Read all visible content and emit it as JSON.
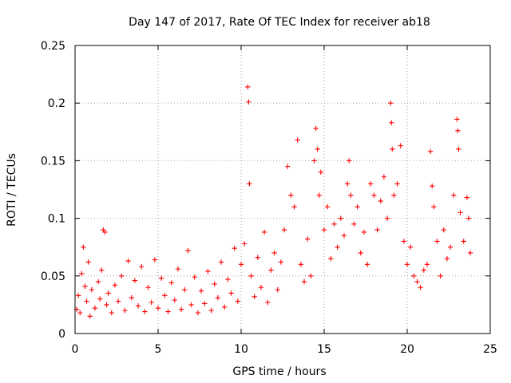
{
  "chart_data": {
    "type": "scatter",
    "title": "Day 147 of 2017, Rate Of TEC Index for receiver ab18",
    "xlabel": "GPS time / hours",
    "ylabel": "ROTI / TECUs",
    "xlim": [
      0,
      25
    ],
    "ylim": [
      0,
      0.25
    ],
    "grid": true,
    "marker": "plus",
    "x_ticks": [
      {
        "value": 0,
        "label": "0"
      },
      {
        "value": 5,
        "label": "5"
      },
      {
        "value": 10,
        "label": "10"
      },
      {
        "value": 15,
        "label": "15"
      },
      {
        "value": 20,
        "label": "20"
      },
      {
        "value": 25,
        "label": "25"
      }
    ],
    "y_ticks": [
      {
        "value": 0,
        "label": "0"
      },
      {
        "value": 0.05,
        "label": "0.05"
      },
      {
        "value": 0.1,
        "label": "0.1"
      },
      {
        "value": 0.15,
        "label": "0.15"
      },
      {
        "value": 0.2,
        "label": "0.2"
      },
      {
        "value": 0.25,
        "label": "0.25"
      }
    ],
    "series": [
      {
        "name": "ab18",
        "color": "#ff0000",
        "points": [
          [
            0.1,
            0.021
          ],
          [
            0.2,
            0.033
          ],
          [
            0.3,
            0.018
          ],
          [
            0.4,
            0.052
          ],
          [
            0.5,
            0.075
          ],
          [
            0.6,
            0.041
          ],
          [
            0.7,
            0.028
          ],
          [
            0.8,
            0.062
          ],
          [
            0.9,
            0.015
          ],
          [
            1.0,
            0.038
          ],
          [
            1.2,
            0.022
          ],
          [
            1.4,
            0.045
          ],
          [
            1.5,
            0.03
          ],
          [
            1.6,
            0.055
          ],
          [
            1.7,
            0.09
          ],
          [
            1.8,
            0.088
          ],
          [
            1.9,
            0.025
          ],
          [
            2.0,
            0.035
          ],
          [
            2.2,
            0.018
          ],
          [
            2.4,
            0.042
          ],
          [
            2.6,
            0.028
          ],
          [
            2.8,
            0.05
          ],
          [
            3.0,
            0.02
          ],
          [
            3.2,
            0.063
          ],
          [
            3.4,
            0.031
          ],
          [
            3.6,
            0.046
          ],
          [
            3.8,
            0.024
          ],
          [
            4.0,
            0.058
          ],
          [
            4.2,
            0.019
          ],
          [
            4.4,
            0.04
          ],
          [
            4.6,
            0.027
          ],
          [
            4.8,
            0.064
          ],
          [
            5.0,
            0.022
          ],
          [
            5.2,
            0.048
          ],
          [
            5.4,
            0.033
          ],
          [
            5.6,
            0.019
          ],
          [
            5.8,
            0.044
          ],
          [
            6.0,
            0.029
          ],
          [
            6.2,
            0.056
          ],
          [
            6.4,
            0.021
          ],
          [
            6.6,
            0.038
          ],
          [
            6.8,
            0.072
          ],
          [
            7.0,
            0.025
          ],
          [
            7.2,
            0.049
          ],
          [
            7.4,
            0.018
          ],
          [
            7.6,
            0.037
          ],
          [
            7.8,
            0.026
          ],
          [
            8.0,
            0.054
          ],
          [
            8.2,
            0.02
          ],
          [
            8.4,
            0.043
          ],
          [
            8.6,
            0.031
          ],
          [
            8.8,
            0.062
          ],
          [
            9.0,
            0.023
          ],
          [
            9.2,
            0.047
          ],
          [
            9.4,
            0.035
          ],
          [
            9.6,
            0.074
          ],
          [
            9.8,
            0.028
          ],
          [
            10.0,
            0.06
          ],
          [
            10.2,
            0.078
          ],
          [
            10.4,
            0.214
          ],
          [
            10.45,
            0.201
          ],
          [
            10.5,
            0.13
          ],
          [
            10.6,
            0.05
          ],
          [
            10.8,
            0.032
          ],
          [
            11.0,
            0.066
          ],
          [
            11.2,
            0.04
          ],
          [
            11.4,
            0.088
          ],
          [
            11.6,
            0.027
          ],
          [
            11.8,
            0.055
          ],
          [
            12.0,
            0.07
          ],
          [
            12.2,
            0.038
          ],
          [
            12.4,
            0.062
          ],
          [
            12.6,
            0.09
          ],
          [
            12.8,
            0.145
          ],
          [
            13.0,
            0.12
          ],
          [
            13.2,
            0.11
          ],
          [
            13.4,
            0.168
          ],
          [
            13.6,
            0.06
          ],
          [
            13.8,
            0.045
          ],
          [
            14.0,
            0.082
          ],
          [
            14.2,
            0.05
          ],
          [
            14.4,
            0.15
          ],
          [
            14.5,
            0.178
          ],
          [
            14.6,
            0.16
          ],
          [
            14.7,
            0.12
          ],
          [
            14.8,
            0.14
          ],
          [
            15.0,
            0.09
          ],
          [
            15.2,
            0.11
          ],
          [
            15.4,
            0.065
          ],
          [
            15.6,
            0.095
          ],
          [
            15.8,
            0.075
          ],
          [
            16.0,
            0.1
          ],
          [
            16.2,
            0.085
          ],
          [
            16.4,
            0.13
          ],
          [
            16.5,
            0.15
          ],
          [
            16.6,
            0.12
          ],
          [
            16.8,
            0.095
          ],
          [
            17.0,
            0.11
          ],
          [
            17.2,
            0.07
          ],
          [
            17.4,
            0.088
          ],
          [
            17.6,
            0.06
          ],
          [
            17.8,
            0.13
          ],
          [
            18.0,
            0.12
          ],
          [
            18.2,
            0.09
          ],
          [
            18.4,
            0.115
          ],
          [
            18.6,
            0.136
          ],
          [
            18.8,
            0.1
          ],
          [
            19.0,
            0.2
          ],
          [
            19.05,
            0.183
          ],
          [
            19.1,
            0.16
          ],
          [
            19.2,
            0.12
          ],
          [
            19.4,
            0.13
          ],
          [
            19.6,
            0.163
          ],
          [
            19.8,
            0.08
          ],
          [
            20.0,
            0.06
          ],
          [
            20.2,
            0.075
          ],
          [
            20.4,
            0.05
          ],
          [
            20.6,
            0.045
          ],
          [
            20.8,
            0.04
          ],
          [
            21.0,
            0.055
          ],
          [
            21.2,
            0.06
          ],
          [
            21.4,
            0.158
          ],
          [
            21.5,
            0.128
          ],
          [
            21.6,
            0.11
          ],
          [
            21.8,
            0.08
          ],
          [
            22.0,
            0.05
          ],
          [
            22.2,
            0.09
          ],
          [
            22.4,
            0.065
          ],
          [
            22.6,
            0.075
          ],
          [
            22.8,
            0.12
          ],
          [
            23.0,
            0.186
          ],
          [
            23.05,
            0.176
          ],
          [
            23.1,
            0.16
          ],
          [
            23.2,
            0.105
          ],
          [
            23.4,
            0.08
          ],
          [
            23.6,
            0.118
          ],
          [
            23.7,
            0.1
          ],
          [
            23.8,
            0.07
          ]
        ]
      }
    ]
  }
}
